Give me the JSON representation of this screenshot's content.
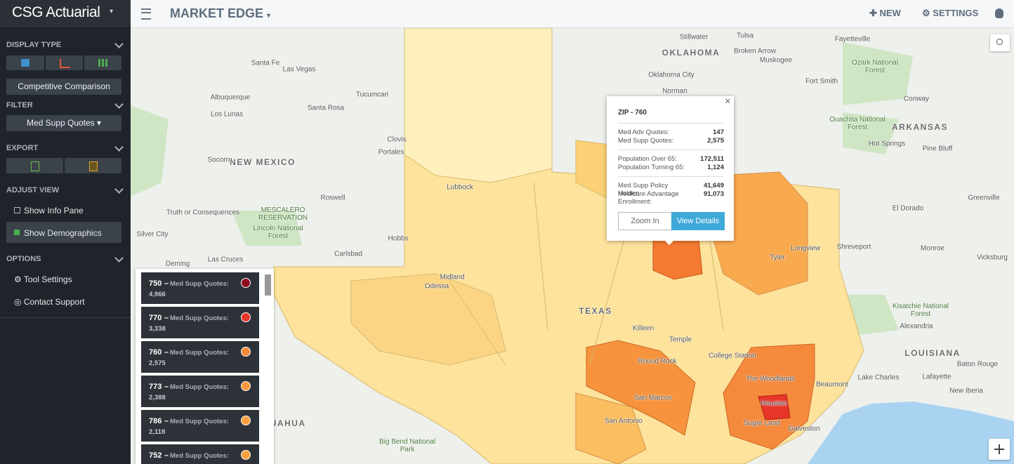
{
  "header": {
    "brand": "CSG Actuarial",
    "title": "MARKET EDGE",
    "new": "NEW",
    "settings": "SETTINGS"
  },
  "sidebar": {
    "display_type": "DISPLAY TYPE",
    "comparison": "Competitive Comparison",
    "filter": "FILTER",
    "filter_value": "Med Supp Quotes",
    "export": "EXPORT",
    "adjust_view": "ADJUST VIEW",
    "show_info_pane": "Show Info Pane",
    "show_demographics": "Show Demographics",
    "options": "OPTIONS",
    "tool_settings": "Tool Settings",
    "contact_support": "Contact Support"
  },
  "popup": {
    "title": "ZIP - 760",
    "groups": [
      [
        {
          "label": "Med Adv Quotes:",
          "value": "147"
        },
        {
          "label": "Med Supp Quotes:",
          "value": "2,575"
        }
      ],
      [
        {
          "label": "Population Over 65:",
          "value": "172,511"
        },
        {
          "label": "Population Turning 65:",
          "value": "1,124"
        }
      ],
      [
        {
          "label": "Med Supp Policy Holder:",
          "value": "41,649"
        },
        {
          "label": "Medicare Advantage Enrollment:",
          "value": "91,073"
        }
      ]
    ],
    "zoom_in": "Zoom In",
    "view_details": "View Details"
  },
  "list": {
    "separator": "–",
    "items": [
      {
        "zip": "750",
        "label": "Med Supp Quotes:",
        "value": "4,966",
        "color": "#8e0b21"
      },
      {
        "zip": "770",
        "label": "Med Supp Quotes:",
        "value": "3,338",
        "color": "#e8352a"
      },
      {
        "zip": "760",
        "label": "Med Supp Quotes:",
        "value": "2,575",
        "color": "#f58a3a"
      },
      {
        "zip": "773",
        "label": "Med Supp Quotes:",
        "value": "2,388",
        "color": "#f7963c"
      },
      {
        "zip": "786",
        "label": "Med Supp Quotes:",
        "value": "2,118",
        "color": "#f8a040"
      },
      {
        "zip": "752",
        "label": "Med Supp Quotes:",
        "value": "",
        "color": "#f8a040"
      }
    ]
  },
  "map_labels": [
    "OKLAHOMA",
    "Oklahoma City",
    "Tulsa",
    "Stillwater",
    "Broken Arrow",
    "Muskogee",
    "Norman",
    "Fayetteville",
    "Ozark National Forest",
    "Fort Smith",
    "Conway",
    "ARKANSAS",
    "Ouachita National Forest",
    "Hot Springs",
    "Pine Bluff",
    "El Dorado",
    "Greenville",
    "Shreveport",
    "Monroe",
    "Vicksburg",
    "Kisatchie National Forest",
    "Alexandria",
    "LOUISIANA",
    "Lake Charles",
    "Lafayette",
    "Baton Rouge",
    "New Iberia",
    "Santa Fe",
    "Las Vegas",
    "Albuquerque",
    "Los Lunas",
    "NEW MEXICO",
    "Tucumcari",
    "Santa Rosa",
    "Clovis",
    "Portales",
    "Roswell",
    "Socorro",
    "Truth or Consequences",
    "MESCALERO RESERVATION",
    "Lincoln National Forest",
    "Silver City",
    "Las Cruces",
    "Carlsbad",
    "Hobbs",
    "Deming",
    "TEXAS",
    "Killeen",
    "Temple",
    "Midland",
    "Odessa",
    "Lubbock",
    "Round Rock",
    "San Marcos",
    "San Antonio",
    "Houston",
    "The Woodlands",
    "Sugar Land",
    "Galveston",
    "Beaumont",
    "Tyler",
    "Longview",
    "College Station",
    "Big Bend National Park",
    "AHUAHUA"
  ]
}
